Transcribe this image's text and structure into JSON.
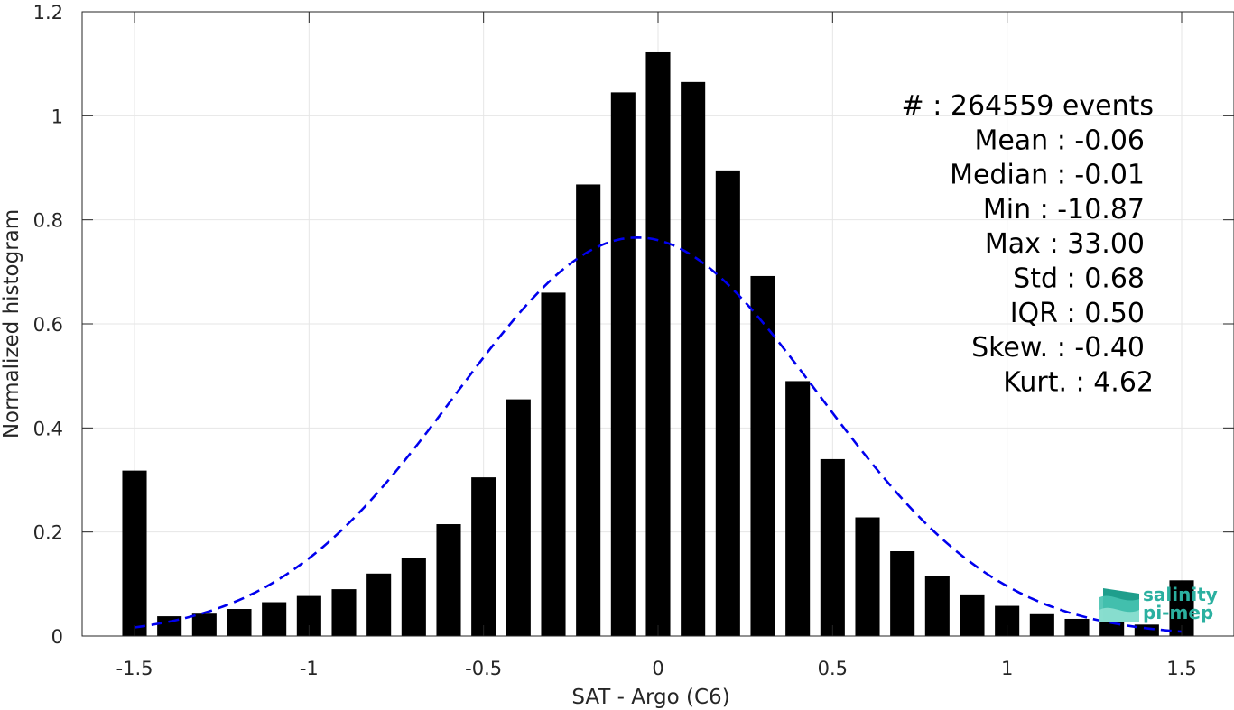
{
  "chart_data": {
    "type": "bar",
    "xlabel": "SAT - Argo (C6)",
    "ylabel": "Normalized histogram",
    "xlim": [
      -1.65,
      1.65
    ],
    "ylim": [
      0,
      1.2
    ],
    "xticks": [
      -1.5,
      -1,
      -0.5,
      0,
      0.5,
      1,
      1.5
    ],
    "xtick_labels": [
      "-1.5",
      "-1",
      "-0.5",
      "0",
      "0.5",
      "1",
      "1.5"
    ],
    "yticks": [
      0,
      0.2,
      0.4,
      0.6,
      0.8,
      1,
      1.2
    ],
    "ytick_labels": [
      "0",
      "0.2",
      "0.4",
      "0.6",
      "0.8",
      "1",
      "1.2"
    ],
    "grid": true,
    "bar_color": "#000000",
    "bin_width": 0.1,
    "x": [
      -1.5,
      -1.4,
      -1.3,
      -1.2,
      -1.1,
      -1.0,
      -0.9,
      -0.8,
      -0.7,
      -0.6,
      -0.5,
      -0.4,
      -0.3,
      -0.2,
      -0.1,
      0.0,
      0.1,
      0.2,
      0.3,
      0.4,
      0.5,
      0.6,
      0.7,
      0.8,
      0.9,
      1.0,
      1.1,
      1.2,
      1.3,
      1.4,
      1.5
    ],
    "values": [
      0.318,
      0.038,
      0.043,
      0.052,
      0.065,
      0.077,
      0.09,
      0.12,
      0.15,
      0.215,
      0.305,
      0.455,
      0.66,
      0.868,
      1.045,
      1.122,
      1.065,
      0.895,
      0.692,
      0.49,
      0.34,
      0.228,
      0.163,
      0.115,
      0.08,
      0.058,
      0.042,
      0.033,
      0.028,
      0.022,
      0.107
    ],
    "fit_curve": {
      "style": "dashed",
      "color": "#0000ee",
      "mean": -0.06,
      "std": 0.52,
      "peak": 0.766
    },
    "stats": {
      "lines": [
        "#  : 264559 events",
        "Mean : -0.06",
        "Median : -0.01",
        "Min : -10.87",
        "Max : 33.00",
        "Std : 0.68",
        "IQR : 0.50",
        "Skew. : -0.40",
        "Kurt. : 4.62"
      ]
    }
  },
  "logo": {
    "line1": "salinity",
    "line2": "pi-mep",
    "color": "#2bb0a0"
  }
}
